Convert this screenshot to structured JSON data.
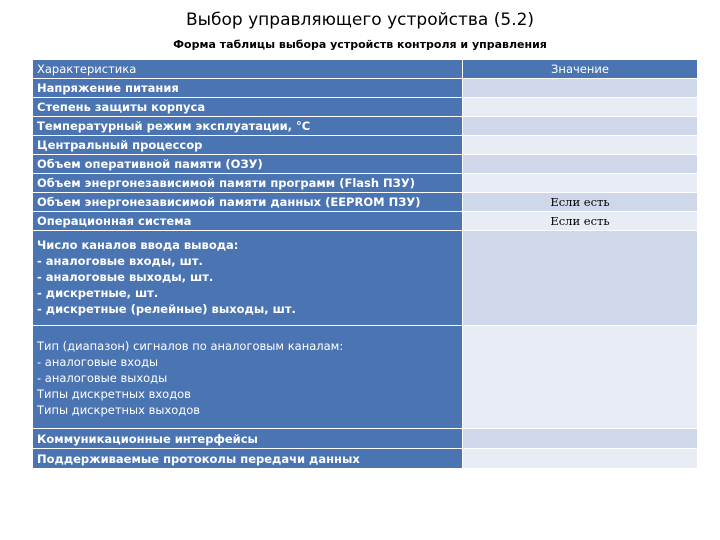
{
  "title": "Выбор управляющего устройства (5.2)",
  "subtitle": "Форма таблицы выбора устройств контроля и управления",
  "table": {
    "header": {
      "c1": "Характеристика",
      "c2": "Значение"
    },
    "rows": [
      {
        "c1": "Напряжение питания",
        "c2": ""
      },
      {
        "c1": "Степень защиты корпуса",
        "c2": ""
      },
      {
        "c1": "Температурный режим эксплуатации, °С",
        "c2": ""
      },
      {
        "c1": "Центральный процессор",
        "c2": ""
      },
      {
        "c1": "Объем оперативной памяти (ОЗУ)",
        "c2": ""
      },
      {
        "c1": "Объем энергонезависимой памяти программ  (Flash ПЗУ)",
        "c2": ""
      },
      {
        "c1": "Объем энергонезависимой памяти данных (EEPROM ПЗУ)",
        "c2": "Если есть"
      },
      {
        "c1": "Операционная система",
        "c2": "Если есть"
      },
      {
        "c1": "Число каналов ввода вывода:\n- аналоговые входы, шт.\n - аналоговые выходы, шт.\n - дискретные, шт.\n - дискретные (релейные) выходы, шт.",
        "c2": ""
      },
      {
        "c1": "Тип (диапазон) сигналов по аналоговым каналам:\n - аналоговые входы\n - аналоговые выходы\nТипы дискретных входов\nТипы дискретных выходов",
        "c2": ""
      },
      {
        "c1": "Коммуникационные интерфейсы",
        "c2": ""
      },
      {
        "c1": "Поддерживаемые протоколы передачи данных",
        "c2": ""
      }
    ]
  }
}
